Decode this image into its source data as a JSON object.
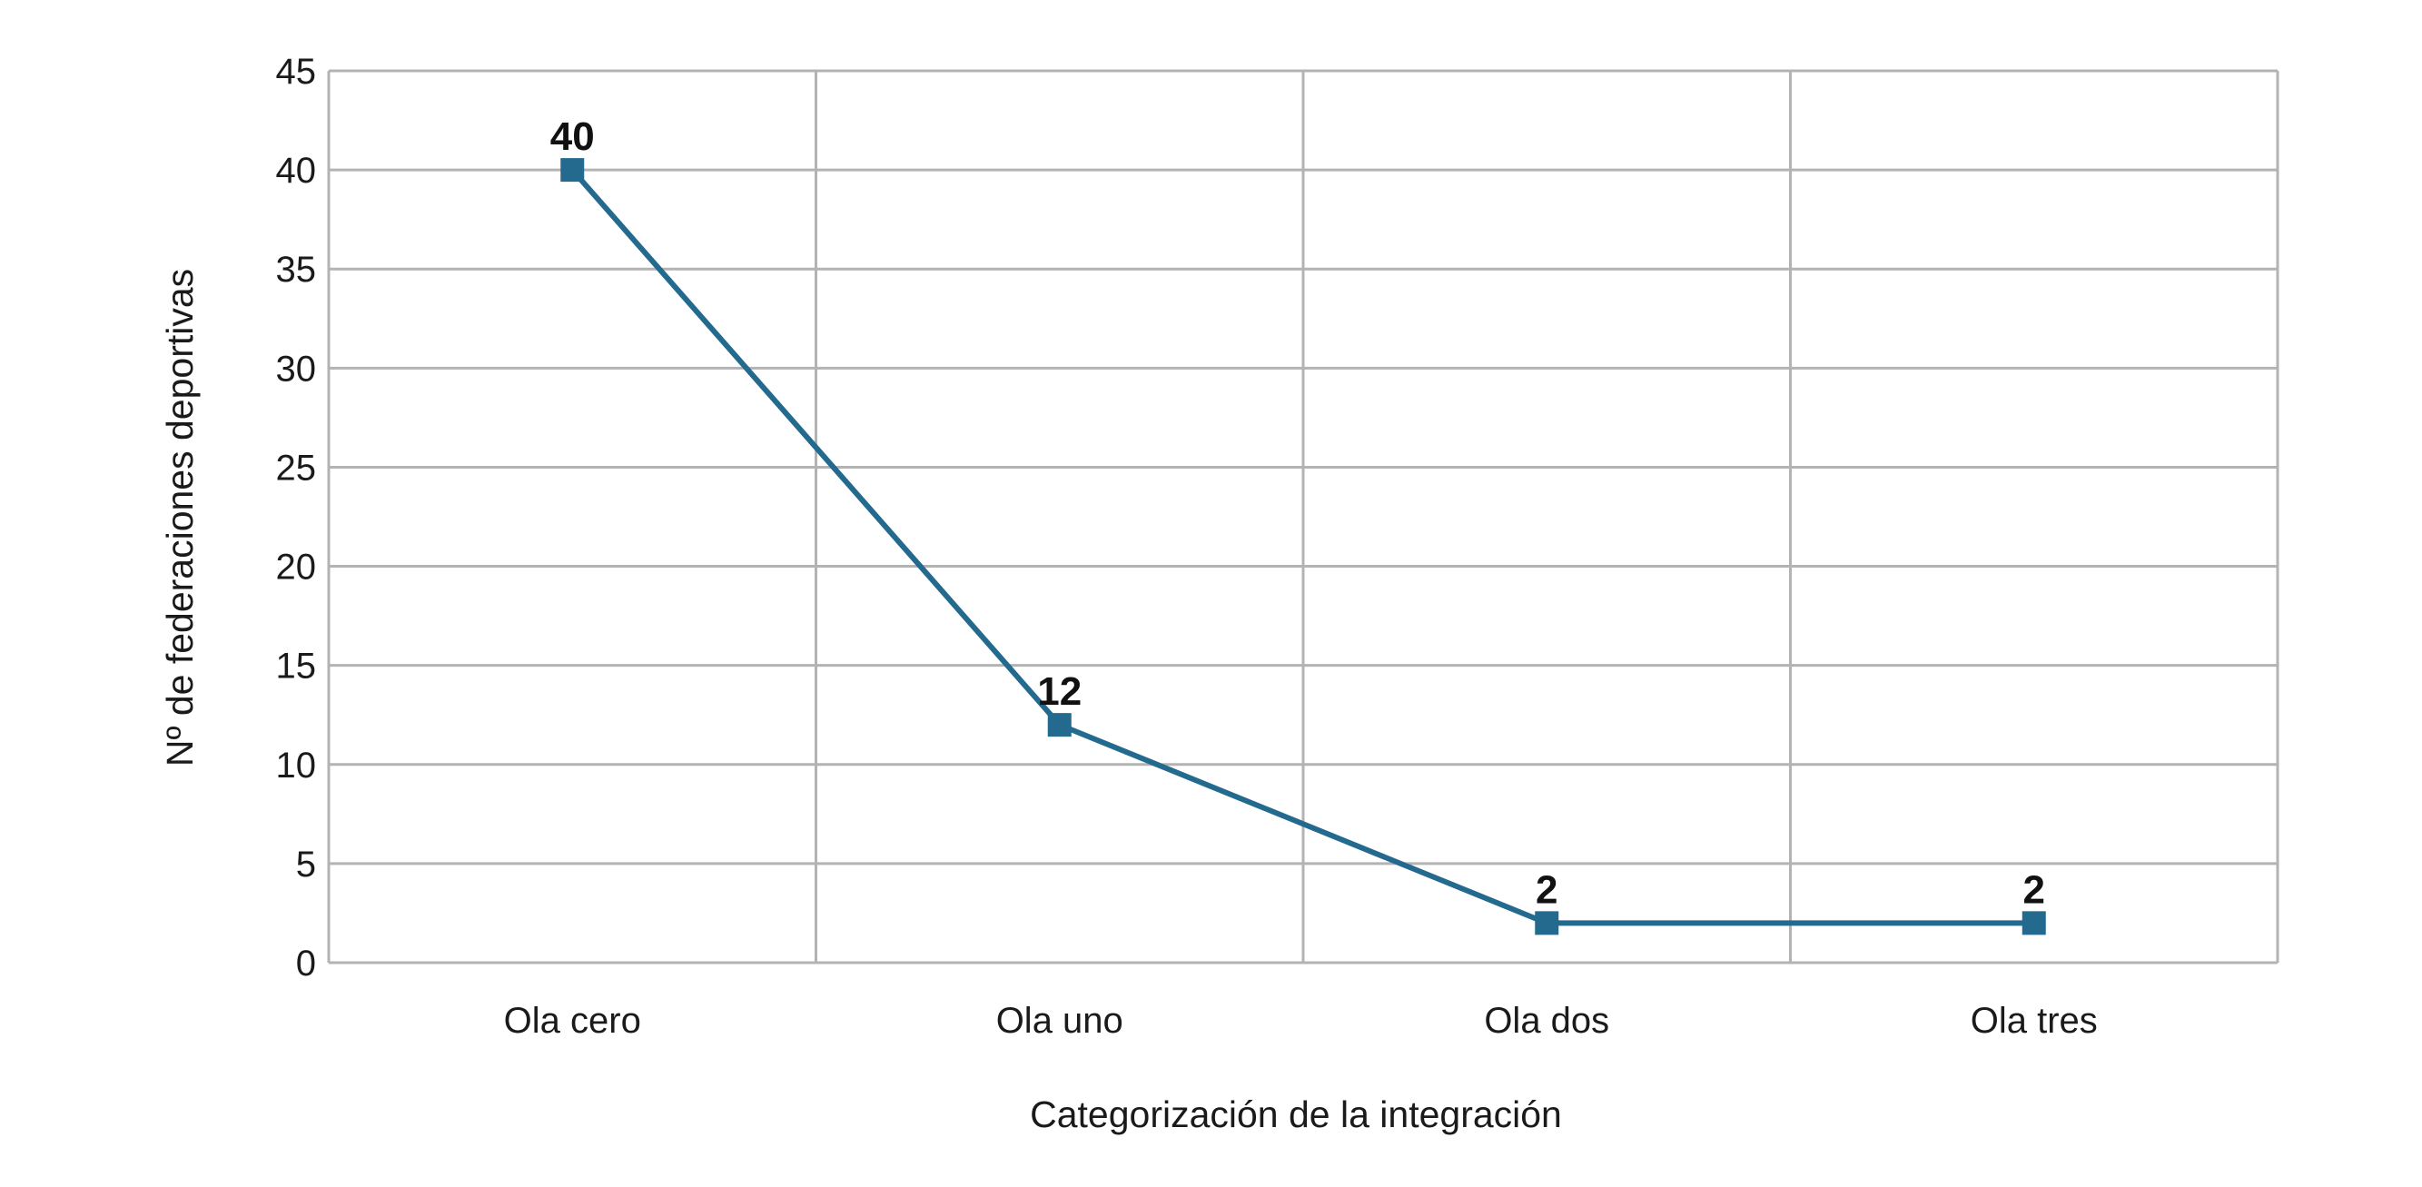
{
  "chart_data": {
    "type": "line",
    "categories": [
      "Ola cero",
      "Ola uno",
      "Ola dos",
      "Ola tres"
    ],
    "series": [
      {
        "values": [
          40,
          12,
          2,
          2
        ],
        "color": "#236a8e"
      }
    ],
    "data_labels": [
      "40",
      "12",
      "2",
      "2"
    ],
    "xlabel": "Categorización de la integración",
    "ylabel": "Nº de federaciones deportivas",
    "ylim": [
      0,
      45
    ],
    "ytick_step": 5,
    "grid": true,
    "marker": "square"
  }
}
